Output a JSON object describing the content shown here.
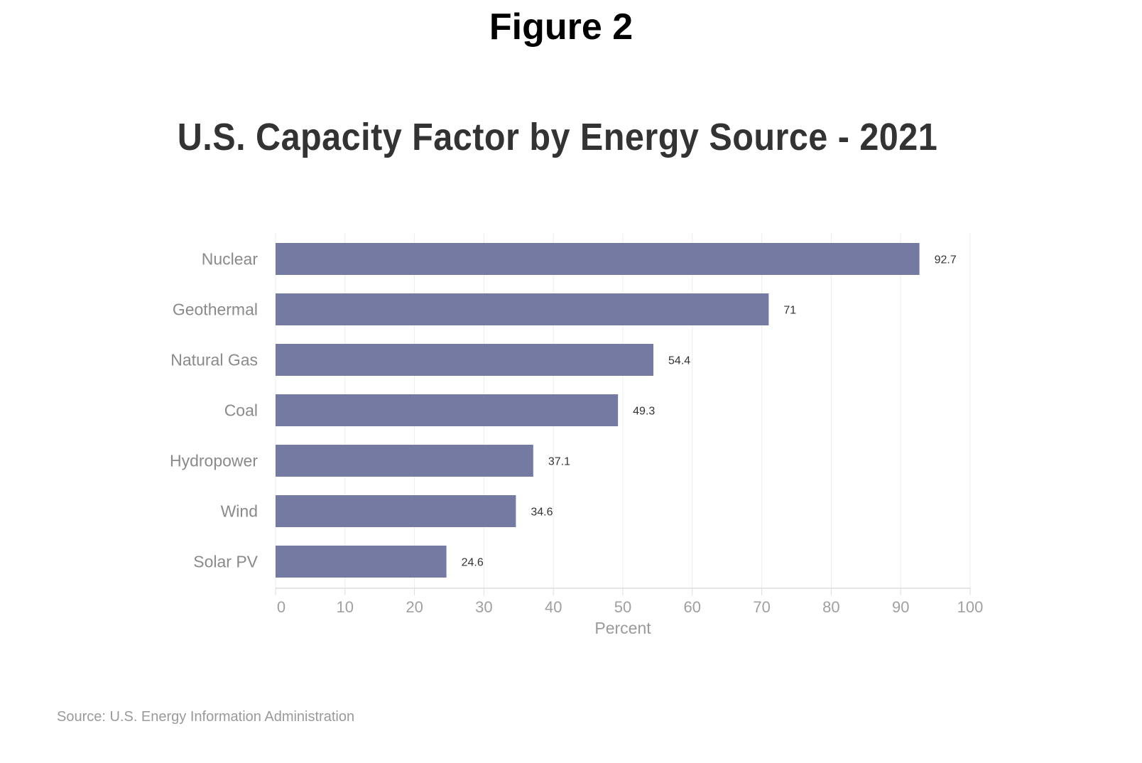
{
  "figure_label": "Figure 2",
  "source": "Source: U.S. Energy Information Administration",
  "colors": {
    "bar": "#757aa3",
    "grid": "#ececec",
    "axis": "#dddddd"
  },
  "chart_data": {
    "type": "bar",
    "orientation": "horizontal",
    "title": "U.S. Capacity Factor by Energy Source - 2021",
    "xlabel": "Percent",
    "ylabel": "",
    "categories": [
      "Nuclear",
      "Geothermal",
      "Natural Gas",
      "Coal",
      "Hydropower",
      "Wind",
      "Solar PV"
    ],
    "values": [
      92.7,
      71,
      54.4,
      49.3,
      37.1,
      34.6,
      24.6
    ],
    "value_labels": [
      "92.7",
      "71",
      "54.4",
      "49.3",
      "37.1",
      "34.6",
      "24.6"
    ],
    "xlim": [
      0,
      100
    ],
    "xticks": [
      0,
      10,
      20,
      30,
      40,
      50,
      60,
      70,
      80,
      90,
      100
    ],
    "grid": true,
    "legend": "none"
  }
}
